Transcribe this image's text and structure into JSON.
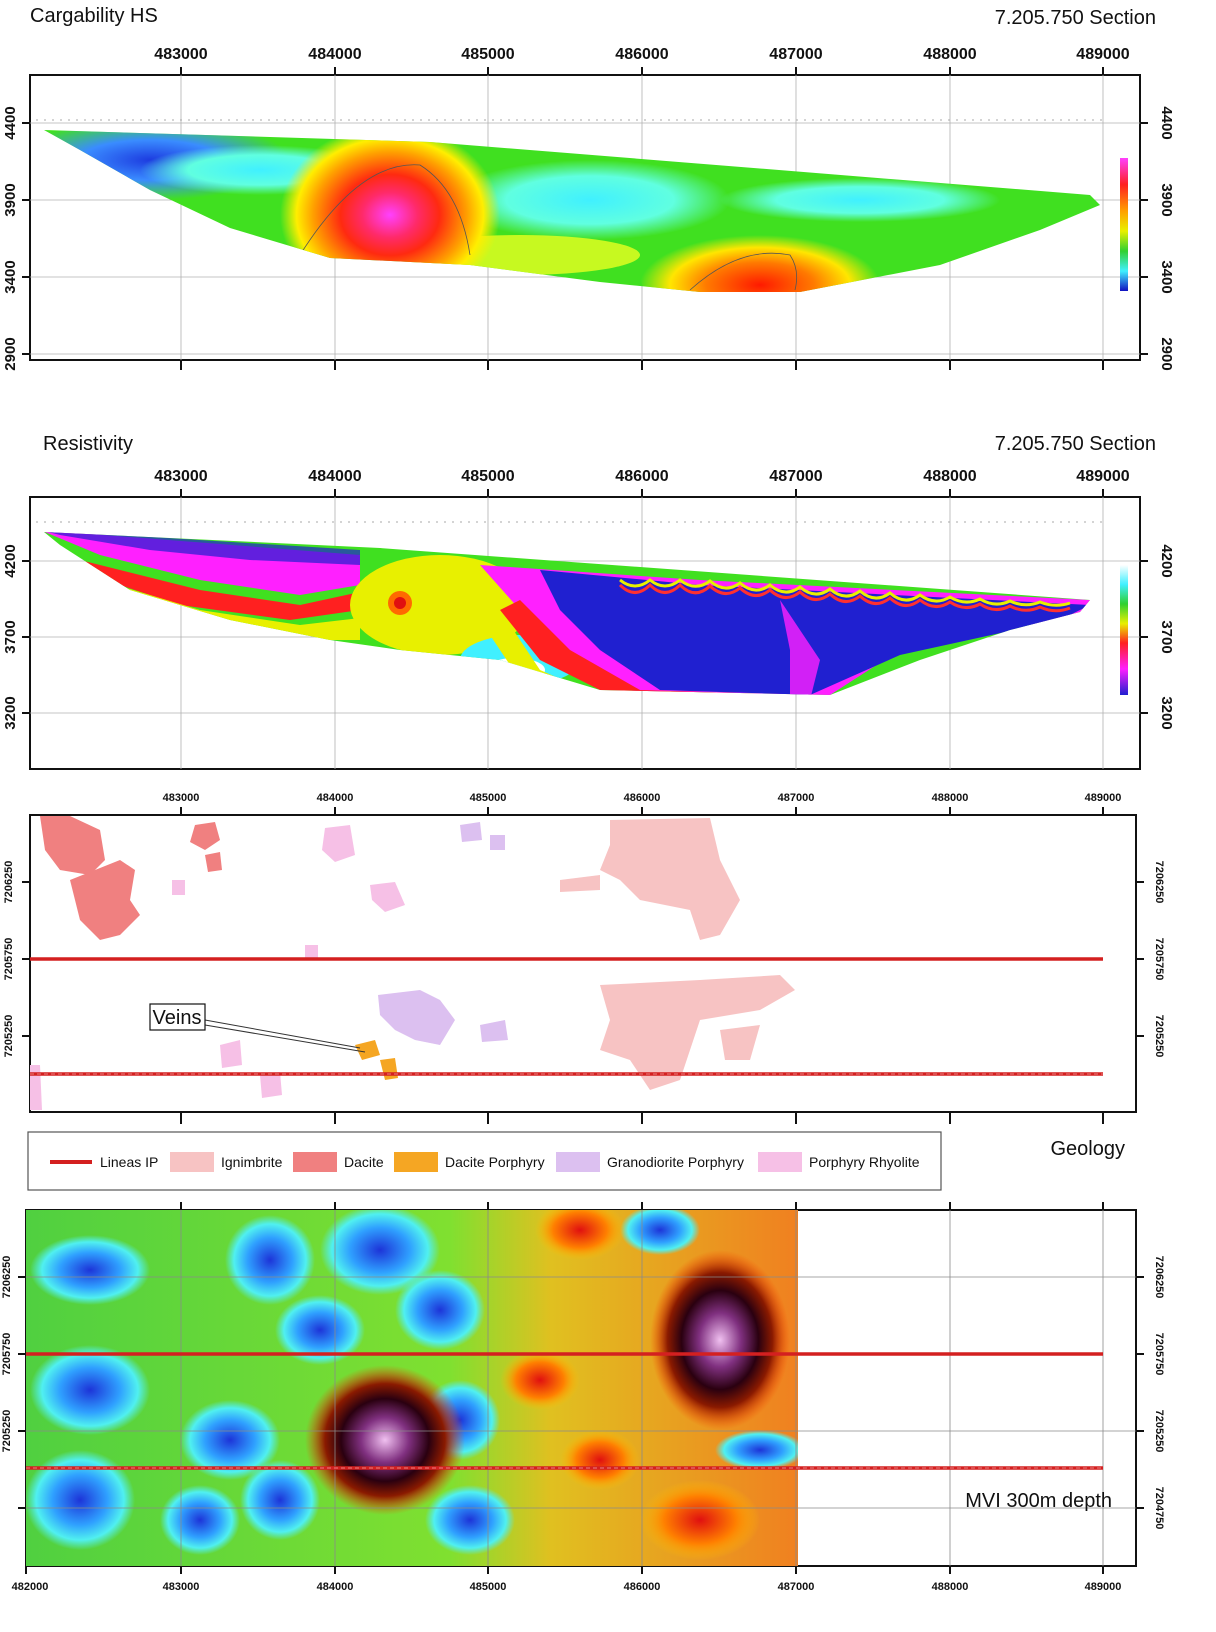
{
  "panel1": {
    "title": "Cargability HS",
    "section": "7.205.750 Section",
    "x_ticks": [
      "483000",
      "484000",
      "485000",
      "486000",
      "487000",
      "488000",
      "489000"
    ],
    "y_ticks": [
      "4400",
      "3900",
      "3400",
      "2900"
    ]
  },
  "panel2": {
    "title": "Resistivity",
    "section": "7.205.750 Section",
    "x_ticks": [
      "483000",
      "484000",
      "485000",
      "486000",
      "487000",
      "488000",
      "489000"
    ],
    "y_ticks": [
      "4200",
      "3700",
      "3200"
    ]
  },
  "panel3": {
    "x_ticks": [
      "483000",
      "484000",
      "485000",
      "486000",
      "487000",
      "488000",
      "489000"
    ],
    "y_ticks": [
      "7206250",
      "7205750",
      "7205250"
    ],
    "veins_label": "Veins",
    "colors": {
      "ignimbrite": "#f7c3c3",
      "dacite": "#f08080",
      "dacite_porphyry": "#f5a623",
      "granodiorite_porphyry": "#dcc0f0",
      "porphyry_rhyolite": "#f6c0e6",
      "ip_line": "#d42020"
    }
  },
  "legend": {
    "items": [
      {
        "label": "Lineas IP",
        "color": "#d42020"
      },
      {
        "label": "Ignimbrite",
        "color": "#f7c3c3"
      },
      {
        "label": "Dacite",
        "color": "#f08080"
      },
      {
        "label": "Dacite Porphyry",
        "color": "#f5a623"
      },
      {
        "label": "Granodiorite Porphyry",
        "color": "#dcc0f0"
      },
      {
        "label": "Porphyry Rhyolite",
        "color": "#f6c0e6"
      }
    ],
    "geology_label": "Geology"
  },
  "panel4": {
    "label": "MVI 300m depth",
    "x_ticks": [
      "482000",
      "483000",
      "484000",
      "485000",
      "486000",
      "487000",
      "488000",
      "489000"
    ],
    "y_ticks": [
      "7206250",
      "7205750",
      "7205250",
      "7204750"
    ]
  }
}
